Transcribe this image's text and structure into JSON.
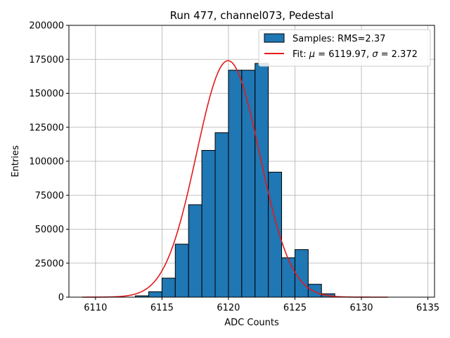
{
  "chart_data": {
    "type": "bar",
    "title": "Run 477, channel073, Pedestal",
    "xlabel": "ADC Counts",
    "ylabel": "Entries",
    "xlim": [
      6108,
      6135.5
    ],
    "ylim": [
      0,
      200000
    ],
    "xticks": [
      6110,
      6115,
      6120,
      6125,
      6130,
      6135
    ],
    "yticks": [
      0,
      25000,
      50000,
      75000,
      100000,
      125000,
      150000,
      175000,
      200000
    ],
    "grid": true,
    "legend_position": "top-right",
    "bar_color": "#1f77b4",
    "fit_color": "#e31a1c",
    "bins": [
      {
        "left": 6113,
        "right": 6114,
        "value": 1000
      },
      {
        "left": 6114,
        "right": 6115,
        "value": 4000
      },
      {
        "left": 6115,
        "right": 6116,
        "value": 14000
      },
      {
        "left": 6116,
        "right": 6117,
        "value": 39000
      },
      {
        "left": 6117,
        "right": 6118,
        "value": 68000
      },
      {
        "left": 6118,
        "right": 6119,
        "value": 108000
      },
      {
        "left": 6119,
        "right": 6120,
        "value": 121000
      },
      {
        "left": 6120,
        "right": 6121,
        "value": 167000
      },
      {
        "left": 6121,
        "right": 6122,
        "value": 167000
      },
      {
        "left": 6122,
        "right": 6123,
        "value": 172000
      },
      {
        "left": 6123,
        "right": 6124,
        "value": 92000
      },
      {
        "left": 6124,
        "right": 6125,
        "value": 29000
      },
      {
        "left": 6125,
        "right": 6126,
        "value": 35000
      },
      {
        "left": 6126,
        "right": 6127,
        "value": 9500
      },
      {
        "left": 6127,
        "right": 6128,
        "value": 2500
      }
    ],
    "fit": {
      "mu": 6119.97,
      "sigma": 2.372,
      "amplitude": 174000,
      "x_range": [
        6109,
        6132
      ]
    },
    "legend": {
      "samples_label": "Samples: RMS=2.37",
      "fit_prefix": "Fit: ",
      "mu_symbol": "μ",
      "fit_mid": " = 6119.97, ",
      "sigma_symbol": "σ",
      "fit_suffix": " = 2.372"
    }
  }
}
